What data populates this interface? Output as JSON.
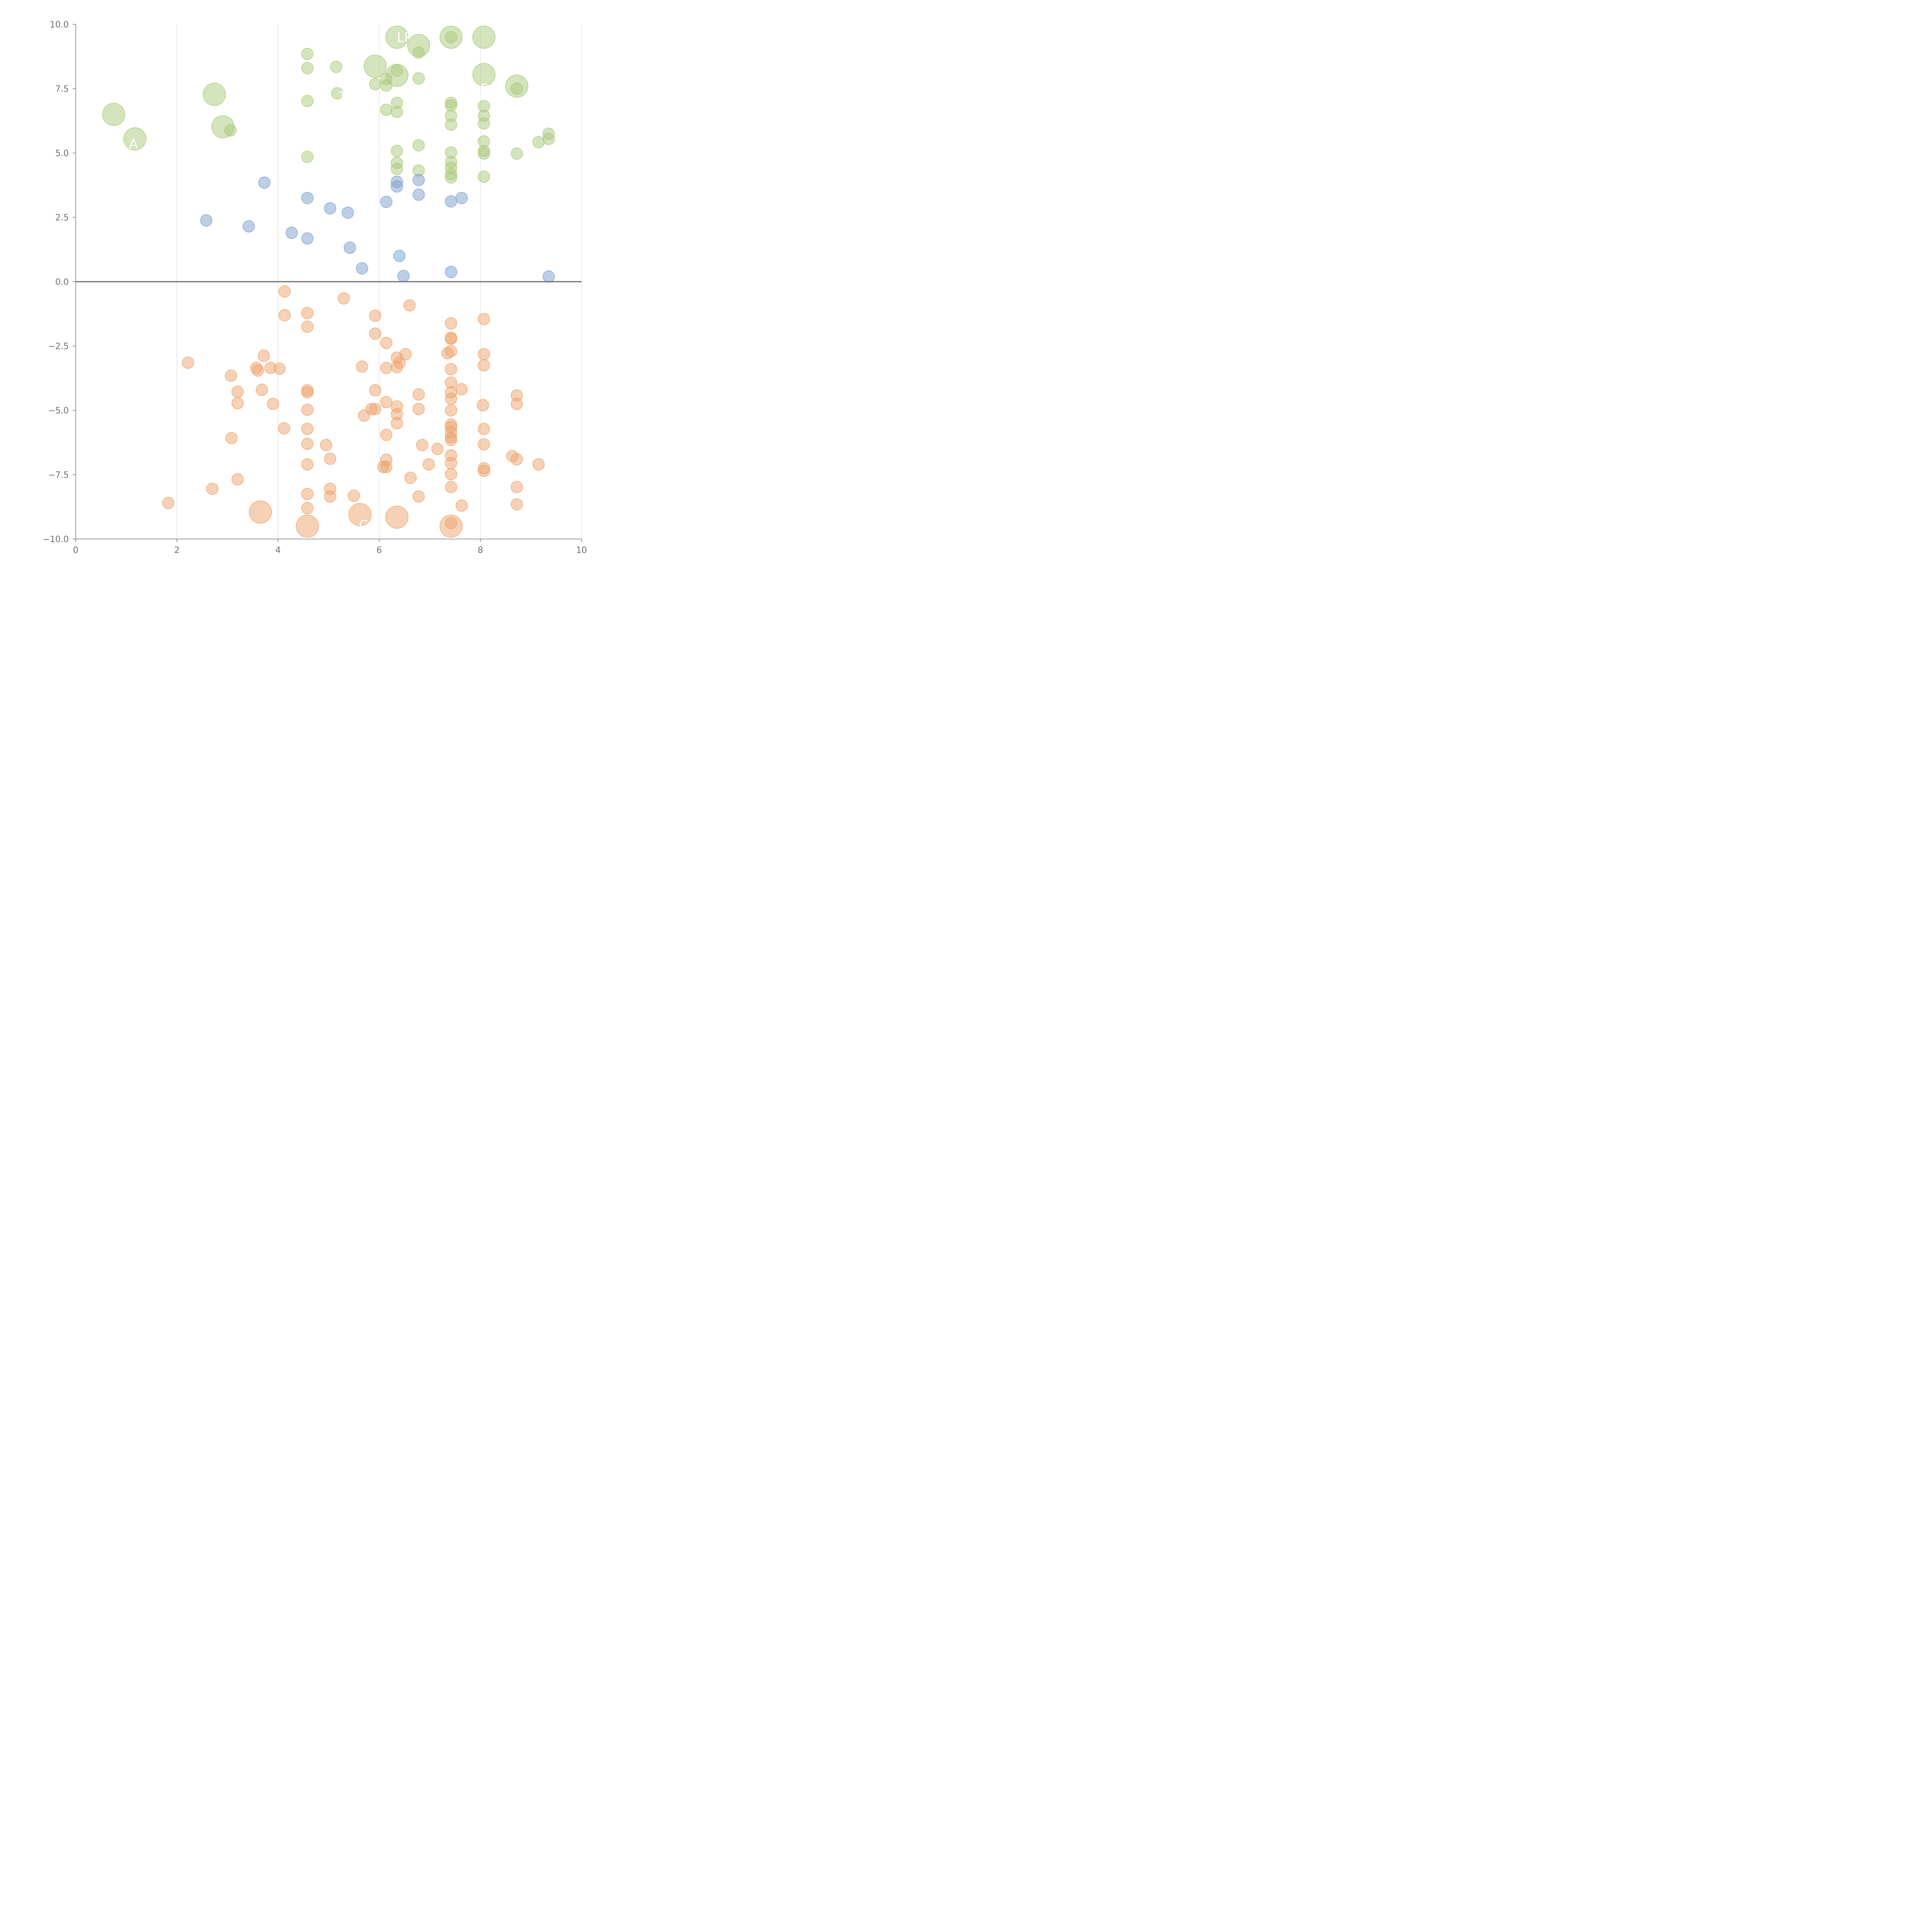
{
  "chart_data": {
    "type": "scatter",
    "title": "",
    "xlabel": "",
    "ylabel": "",
    "xlim": [
      0,
      10
    ],
    "ylim": [
      -10,
      10
    ],
    "x_ticks": [
      "0",
      "2",
      "4",
      "6",
      "8",
      "10"
    ],
    "y_ticks": [
      "10.0",
      "7.5",
      "5.0",
      "2.5",
      "0.0",
      "−2.5",
      "−5.0",
      "−7.5",
      "−10.0"
    ],
    "grid": "vertical",
    "zero_line": true,
    "colors": {
      "green": "#a9c97a",
      "blue": "#7b9fd0",
      "orange": "#eda36c"
    },
    "series": [
      {
        "color": "#a9c97a",
        "points": [
          [
            0.75,
            6.5,
            2
          ],
          [
            1.17,
            5.55,
            2
          ],
          [
            2.74,
            7.28,
            2
          ],
          [
            2.91,
            6.02,
            2
          ],
          [
            3.06,
            5.88,
            1
          ],
          [
            4.58,
            8.85,
            1
          ],
          [
            4.58,
            8.3,
            1
          ],
          [
            4.58,
            7.02,
            1
          ],
          [
            4.58,
            4.85,
            1
          ],
          [
            5.15,
            8.35,
            1
          ],
          [
            5.17,
            7.32,
            1
          ],
          [
            5.92,
            8.37,
            2
          ],
          [
            5.92,
            7.68,
            1
          ],
          [
            6.14,
            7.62,
            1
          ],
          [
            6.14,
            7.88,
            1
          ],
          [
            6.14,
            6.68,
            1
          ],
          [
            6.35,
            9.5,
            2
          ],
          [
            6.35,
            8.02,
            2
          ],
          [
            6.35,
            8.2,
            1
          ],
          [
            6.35,
            6.95,
            1
          ],
          [
            6.35,
            6.6,
            1
          ],
          [
            6.35,
            5.08,
            1
          ],
          [
            6.35,
            4.62,
            1
          ],
          [
            6.35,
            4.38,
            1
          ],
          [
            6.78,
            9.18,
            2
          ],
          [
            6.78,
            8.9,
            1
          ],
          [
            6.78,
            7.9,
            1
          ],
          [
            6.78,
            5.3,
            1
          ],
          [
            6.78,
            4.32,
            1
          ],
          [
            7.42,
            9.5,
            2
          ],
          [
            7.42,
            9.5,
            1
          ],
          [
            7.42,
            6.95,
            1
          ],
          [
            7.42,
            6.85,
            1
          ],
          [
            7.42,
            6.45,
            1
          ],
          [
            7.42,
            6.1,
            1
          ],
          [
            7.42,
            5.02,
            1
          ],
          [
            7.42,
            4.65,
            1
          ],
          [
            7.42,
            4.42,
            1
          ],
          [
            7.42,
            4.18,
            1
          ],
          [
            7.42,
            4.05,
            1
          ],
          [
            8.07,
            9.5,
            2
          ],
          [
            8.07,
            8.05,
            2
          ],
          [
            8.07,
            6.82,
            1
          ],
          [
            8.07,
            6.45,
            1
          ],
          [
            8.07,
            6.15,
            1
          ],
          [
            8.07,
            5.45,
            1
          ],
          [
            8.07,
            5.08,
            1
          ],
          [
            8.07,
            4.98,
            1
          ],
          [
            8.07,
            4.08,
            1
          ],
          [
            8.72,
            7.6,
            2
          ],
          [
            8.72,
            7.5,
            1
          ],
          [
            8.72,
            4.98,
            1
          ],
          [
            9.15,
            5.42,
            1
          ],
          [
            9.35,
            5.75,
            1
          ],
          [
            9.35,
            5.55,
            1
          ]
        ]
      },
      {
        "color": "#7b9fd0",
        "points": [
          [
            2.58,
            2.38,
            1
          ],
          [
            3.42,
            2.15,
            1
          ],
          [
            3.73,
            3.85,
            1
          ],
          [
            4.27,
            1.9,
            1
          ],
          [
            4.58,
            3.25,
            1
          ],
          [
            4.58,
            1.68,
            1
          ],
          [
            5.03,
            2.85,
            1
          ],
          [
            5.38,
            2.68,
            1
          ],
          [
            5.42,
            1.32,
            1
          ],
          [
            5.66,
            0.52,
            1
          ],
          [
            6.14,
            3.1,
            1
          ],
          [
            6.35,
            3.88,
            1
          ],
          [
            6.35,
            3.7,
            1
          ],
          [
            6.4,
            1.0,
            1
          ],
          [
            6.48,
            0.22,
            1
          ],
          [
            6.78,
            3.95,
            1
          ],
          [
            6.78,
            3.38,
            1
          ],
          [
            7.42,
            3.12,
            1
          ],
          [
            7.42,
            0.38,
            1
          ],
          [
            7.63,
            3.25,
            1
          ],
          [
            9.35,
            0.2,
            1
          ]
        ]
      },
      {
        "color": "#eda36c",
        "points": [
          [
            1.83,
            -8.6,
            1
          ],
          [
            2.22,
            -3.15,
            1
          ],
          [
            2.7,
            -8.05,
            1
          ],
          [
            3.07,
            -3.65,
            1
          ],
          [
            3.08,
            -6.08,
            1
          ],
          [
            3.2,
            -4.28,
            1
          ],
          [
            3.2,
            -4.72,
            1
          ],
          [
            3.2,
            -7.68,
            1
          ],
          [
            3.57,
            -3.35,
            1
          ],
          [
            3.6,
            -3.45,
            1
          ],
          [
            3.65,
            -8.95,
            2
          ],
          [
            3.68,
            -4.2,
            1
          ],
          [
            3.72,
            -2.88,
            1
          ],
          [
            3.85,
            -3.35,
            1
          ],
          [
            3.9,
            -4.75,
            1
          ],
          [
            4.03,
            -3.38,
            1
          ],
          [
            4.12,
            -5.7,
            1
          ],
          [
            4.13,
            -0.38,
            1
          ],
          [
            4.13,
            -1.3,
            1
          ],
          [
            4.58,
            -1.22,
            1
          ],
          [
            4.58,
            -1.75,
            1
          ],
          [
            4.58,
            -4.22,
            1
          ],
          [
            4.58,
            -4.3,
            1
          ],
          [
            4.58,
            -4.98,
            1
          ],
          [
            4.58,
            -5.72,
            1
          ],
          [
            4.58,
            -6.3,
            1
          ],
          [
            4.58,
            -7.1,
            1
          ],
          [
            4.58,
            -8.25,
            1
          ],
          [
            4.58,
            -8.8,
            1
          ],
          [
            4.58,
            -9.5,
            2
          ],
          [
            4.95,
            -6.35,
            1
          ],
          [
            5.03,
            -6.88,
            1
          ],
          [
            5.03,
            -8.05,
            1
          ],
          [
            5.03,
            -8.35,
            1
          ],
          [
            5.3,
            -0.65,
            1
          ],
          [
            5.5,
            -8.32,
            1
          ],
          [
            5.62,
            -9.05,
            2
          ],
          [
            5.66,
            -3.3,
            1
          ],
          [
            5.7,
            -5.2,
            1
          ],
          [
            5.85,
            -4.95,
            1
          ],
          [
            5.92,
            -1.32,
            1
          ],
          [
            5.92,
            -2.02,
            1
          ],
          [
            5.92,
            -4.22,
            1
          ],
          [
            5.92,
            -4.95,
            1
          ],
          [
            6.08,
            -7.2,
            1
          ],
          [
            6.14,
            -2.38,
            1
          ],
          [
            6.14,
            -3.35,
            1
          ],
          [
            6.14,
            -4.68,
            1
          ],
          [
            6.14,
            -5.95,
            1
          ],
          [
            6.14,
            -6.92,
            1
          ],
          [
            6.14,
            -7.2,
            1
          ],
          [
            6.35,
            -2.95,
            1
          ],
          [
            6.35,
            -3.32,
            1
          ],
          [
            6.35,
            -4.85,
            1
          ],
          [
            6.35,
            -5.15,
            1
          ],
          [
            6.35,
            -5.5,
            1
          ],
          [
            6.35,
            -9.15,
            2
          ],
          [
            6.4,
            -3.15,
            1
          ],
          [
            6.52,
            -2.82,
            1
          ],
          [
            6.6,
            -0.92,
            1
          ],
          [
            6.62,
            -7.62,
            1
          ],
          [
            6.78,
            -4.38,
            1
          ],
          [
            6.78,
            -4.95,
            1
          ],
          [
            6.78,
            -8.35,
            1
          ],
          [
            6.85,
            -6.35,
            1
          ],
          [
            6.98,
            -7.1,
            1
          ],
          [
            7.15,
            -6.5,
            1
          ],
          [
            7.35,
            -2.78,
            1
          ],
          [
            7.42,
            -1.62,
            1
          ],
          [
            7.42,
            -2.18,
            1
          ],
          [
            7.42,
            -2.22,
            1
          ],
          [
            7.42,
            -2.7,
            1
          ],
          [
            7.42,
            -3.4,
            1
          ],
          [
            7.42,
            -3.92,
            1
          ],
          [
            7.42,
            -4.3,
            1
          ],
          [
            7.42,
            -4.55,
            1
          ],
          [
            7.42,
            -5.0,
            1
          ],
          [
            7.42,
            -5.55,
            1
          ],
          [
            7.42,
            -5.65,
            1
          ],
          [
            7.42,
            -5.85,
            1
          ],
          [
            7.42,
            -6.05,
            1
          ],
          [
            7.42,
            -6.15,
            1
          ],
          [
            7.42,
            -6.75,
            1
          ],
          [
            7.42,
            -7.05,
            1
          ],
          [
            7.42,
            -7.48,
            1
          ],
          [
            7.42,
            -7.98,
            1
          ],
          [
            7.42,
            -9.38,
            1
          ],
          [
            7.42,
            -9.5,
            2
          ],
          [
            7.63,
            -4.18,
            1
          ],
          [
            7.63,
            -8.7,
            1
          ],
          [
            8.05,
            -4.8,
            1
          ],
          [
            8.07,
            -1.45,
            1
          ],
          [
            8.07,
            -2.82,
            1
          ],
          [
            8.07,
            -3.25,
            1
          ],
          [
            8.07,
            -5.72,
            1
          ],
          [
            8.07,
            -6.32,
            1
          ],
          [
            8.07,
            -7.25,
            1
          ],
          [
            8.07,
            -7.35,
            1
          ],
          [
            8.63,
            -6.78,
            1
          ],
          [
            8.72,
            -4.42,
            1
          ],
          [
            8.72,
            -4.75,
            1
          ],
          [
            8.72,
            -6.9,
            1
          ],
          [
            8.72,
            -7.98,
            1
          ],
          [
            8.72,
            -8.65,
            1
          ],
          [
            9.15,
            -7.1,
            1
          ]
        ]
      }
    ],
    "labels": [
      {
        "text": "LP",
        "x": 6.35,
        "y": 9.5
      },
      {
        "text": "R",
        "x": 8.0,
        "y": 7.5
      },
      {
        "text": "T",
        "x": 5.2,
        "y": 7.2
      },
      {
        "text": "A",
        "x": 1.05,
        "y": 5.35
      },
      {
        "text": "C",
        "x": 5.6,
        "y": -9.45
      }
    ]
  }
}
